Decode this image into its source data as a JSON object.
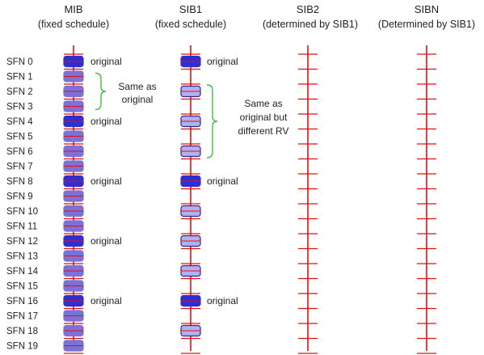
{
  "columns": [
    {
      "key": "mib",
      "title": "MIB",
      "subtitle": "(fixed schedule)"
    },
    {
      "key": "sib1",
      "title": "SIB1",
      "subtitle": "(fixed schedule)"
    },
    {
      "key": "sib2",
      "title": "SIB2",
      "subtitle": "(determined by SIB1)"
    },
    {
      "key": "sibn",
      "title": "SIBN",
      "subtitle": "(Determined by SIB1)"
    }
  ],
  "sfn_labels": [
    "SFN 0",
    "SFN 1",
    "SFN 2",
    "SFN 3",
    "SFN 4",
    "SFN 5",
    "SFN 6",
    "SFN 7",
    "SFN 8",
    "SFN 9",
    "SFN 10",
    "SFN 11",
    "SFN 12",
    "SFN 13",
    "SFN 14",
    "SFN 15",
    "SFN 16",
    "SFN 17",
    "SFN 18",
    "SFN 19"
  ],
  "mib": {
    "original_sfns": [
      0,
      4,
      8,
      12,
      16
    ],
    "repeat_sfns": [
      1,
      2,
      3,
      5,
      6,
      7,
      9,
      10,
      11,
      13,
      14,
      15,
      17,
      18,
      19
    ],
    "original_label": "original",
    "brace_sfns": [
      1,
      3
    ],
    "brace_note": [
      "Same as",
      "original"
    ]
  },
  "sib1": {
    "original_sfns": [
      0,
      8,
      16
    ],
    "rv_sfns": [
      2,
      4,
      6,
      10,
      12,
      14,
      18
    ],
    "original_label": "original",
    "brace_sfns": [
      2,
      6
    ],
    "brace_note": [
      "Same as",
      "original but",
      "different RV"
    ]
  },
  "colors": {
    "timeline": "#e01010",
    "block_original": "#2f2fd0",
    "block_repeat": "#7a72d6",
    "block_rv_fill": "#b3b0f0",
    "block_rv_stroke": "#2a2a8a",
    "brace": "#44bb44"
  }
}
